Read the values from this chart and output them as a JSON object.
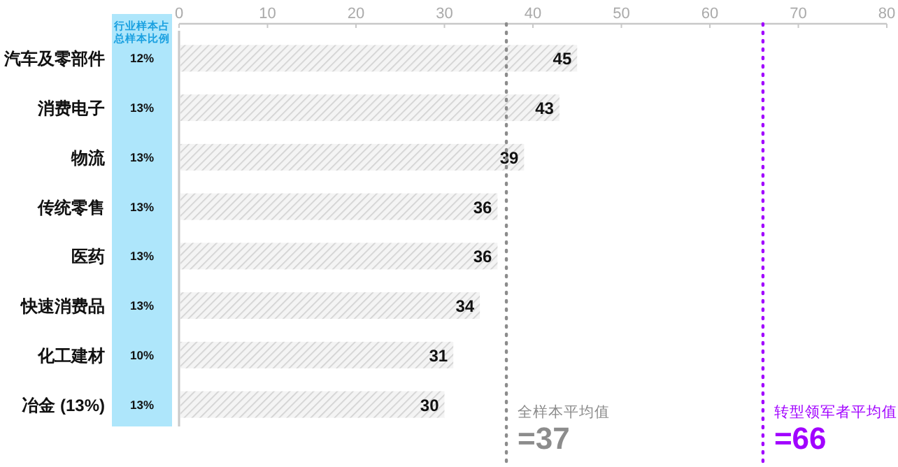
{
  "chart_data": {
    "type": "bar",
    "orientation": "horizontal",
    "categories": [
      "汽车及零部件",
      "消费电子",
      "物流",
      "传统零售",
      "医药",
      "快速消费品",
      "化工建材",
      "冶金 (13%)"
    ],
    "series": [
      {
        "color": "#d0d0d0",
        "values": [
          45,
          43,
          39,
          36,
          36,
          34,
          31,
          30
        ]
      }
    ],
    "data_labels": true,
    "xlim": [
      0,
      80
    ],
    "xticks": [
      0,
      10,
      20,
      30,
      40,
      50,
      60,
      70,
      80
    ],
    "grid": false,
    "ref_lines": [
      {
        "axis": "x",
        "value": 37,
        "label": "全样本平均值\n=37",
        "color": "#8c8c8c",
        "line_style": "dotted"
      },
      {
        "axis": "x",
        "value": 66,
        "label": "转型领军者平均值\n=66",
        "color": "#a100ff",
        "line_style": "dotted"
      }
    ],
    "annotations": [
      "行业样本占总样本比例",
      "12%",
      "13%",
      "13%",
      "13%",
      "13%",
      "13%",
      "10%",
      "13%"
    ]
  }
}
